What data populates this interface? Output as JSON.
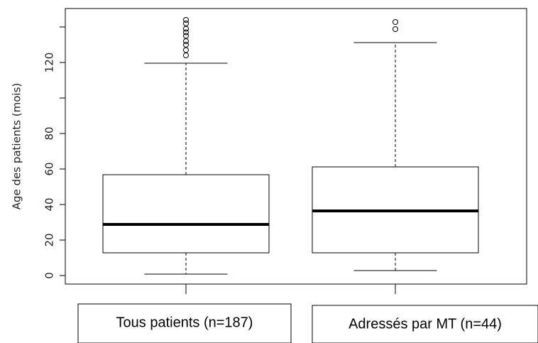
{
  "chart_data": {
    "type": "box",
    "y_label": "Age des patients (mois)",
    "categories": [
      "Tous patients (n=187)",
      "Adressés par MT (n=44)"
    ],
    "boxes": [
      {
        "min": 0.8,
        "q1": 12.8,
        "median": 28.8,
        "q3": 56.8,
        "max": 119.6,
        "outliers": [
          124,
          127,
          130,
          132,
          135,
          137,
          139,
          142,
          144
        ]
      },
      {
        "min": 2.8,
        "q1": 12.8,
        "median": 36.4,
        "q3": 61.2,
        "max": 131.2,
        "outliers": [
          138.8,
          142.8
        ]
      }
    ],
    "color": "#000000",
    "ylim": [
      -4.8,
      150.4
    ],
    "yticks": [
      0,
      20,
      40,
      60,
      80,
      {
        "value": 100
      },
      120,
      {
        "value": 140
      }
    ]
  }
}
